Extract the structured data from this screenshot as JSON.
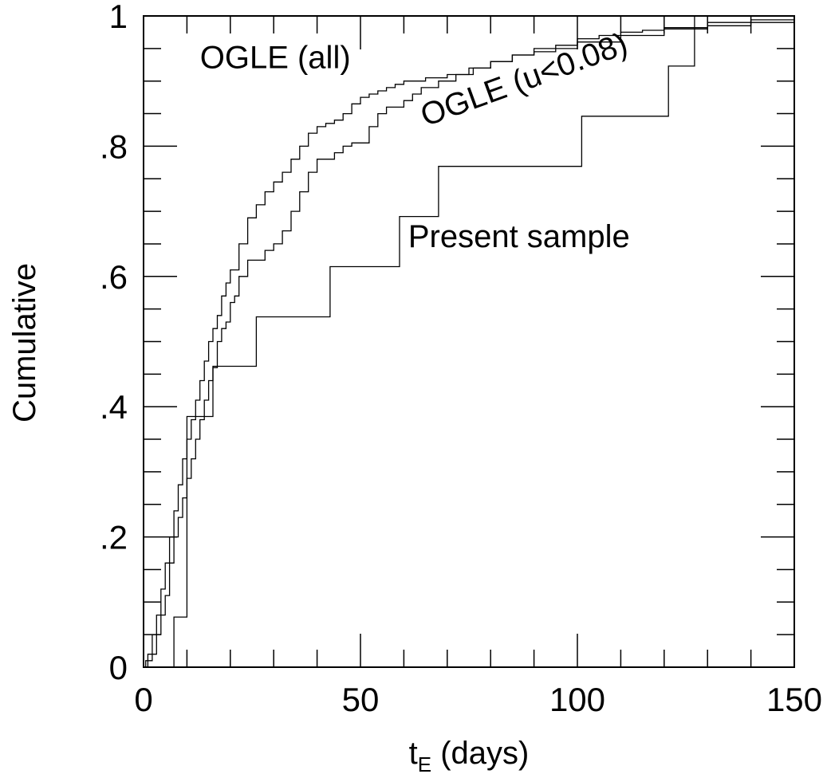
{
  "chart_data": {
    "type": "line",
    "xlabel_main": "t",
    "xlabel_sub": "E",
    "xlabel_rest": " (days)",
    "ylabel": "Cumulative",
    "xlim": [
      0,
      150
    ],
    "ylim": [
      0,
      1
    ],
    "xticks": [
      {
        "value": 0,
        "label": "0"
      },
      {
        "value": 50,
        "label": "50"
      },
      {
        "value": 100,
        "label": "100"
      },
      {
        "value": 150,
        "label": "150"
      }
    ],
    "yticks": [
      {
        "value": 0,
        "label": "0"
      },
      {
        "value": 0.2,
        "label": ".2"
      },
      {
        "value": 0.4,
        "label": ".4"
      },
      {
        "value": 0.6,
        "label": ".6"
      },
      {
        "value": 0.8,
        "label": ".8"
      },
      {
        "value": 1,
        "label": "1"
      }
    ],
    "x_minor_step": 10,
    "y_minor_step": 0.05,
    "grid": false,
    "legend": "none",
    "line_style": "step",
    "annotations": [
      {
        "text": "OGLE (all)",
        "x": 13,
        "y": 0.92,
        "angle": 0
      },
      {
        "text": "OGLE (u<0.08)",
        "x": 65,
        "y": 0.83,
        "angle": -20
      },
      {
        "text": "Present sample",
        "x": 61,
        "y": 0.645,
        "angle": 0
      }
    ],
    "series": [
      {
        "name": "OGLE (all)",
        "x": [
          0,
          0.5,
          1,
          2,
          3,
          4,
          5,
          6,
          7,
          8,
          9,
          10,
          11,
          12,
          13,
          14,
          15,
          16,
          17,
          18,
          19,
          20,
          22,
          24,
          26,
          28,
          30,
          32,
          34,
          36,
          38,
          40,
          42,
          44,
          46,
          48,
          50,
          52,
          54,
          56,
          58,
          60,
          65,
          70,
          75,
          80,
          85,
          90,
          95,
          100,
          105,
          110,
          115,
          120,
          130,
          140,
          150
        ],
        "y": [
          0,
          0.01,
          0.02,
          0.05,
          0.08,
          0.12,
          0.16,
          0.2,
          0.24,
          0.28,
          0.32,
          0.35,
          0.38,
          0.41,
          0.44,
          0.47,
          0.5,
          0.52,
          0.54,
          0.57,
          0.59,
          0.61,
          0.65,
          0.69,
          0.71,
          0.73,
          0.745,
          0.76,
          0.78,
          0.8,
          0.82,
          0.83,
          0.835,
          0.84,
          0.85,
          0.865,
          0.875,
          0.88,
          0.885,
          0.89,
          0.895,
          0.9,
          0.905,
          0.91,
          0.92,
          0.93,
          0.94,
          0.945,
          0.955,
          0.965,
          0.97,
          0.975,
          0.978,
          0.982,
          0.99,
          0.994,
          1.0
        ]
      },
      {
        "name": "OGLE (u<0.08)",
        "x": [
          0,
          1,
          2,
          3,
          4,
          5,
          6,
          7,
          8,
          9,
          10,
          11,
          12,
          13,
          14,
          15,
          16,
          17,
          18,
          19,
          20,
          21,
          22,
          24,
          26,
          28,
          30,
          32,
          34,
          36,
          38,
          40,
          42,
          44,
          46,
          48,
          50,
          52,
          54,
          56,
          58,
          60,
          62,
          64,
          68,
          72,
          76,
          80,
          85,
          90,
          100,
          110,
          120,
          130,
          140,
          150
        ],
        "y": [
          0,
          0.01,
          0.02,
          0.05,
          0.08,
          0.11,
          0.16,
          0.2,
          0.23,
          0.26,
          0.29,
          0.32,
          0.35,
          0.38,
          0.41,
          0.44,
          0.46,
          0.5,
          0.52,
          0.53,
          0.56,
          0.57,
          0.6,
          0.625,
          0.625,
          0.64,
          0.65,
          0.67,
          0.7,
          0.73,
          0.76,
          0.78,
          0.78,
          0.79,
          0.8,
          0.805,
          0.805,
          0.83,
          0.85,
          0.86,
          0.86,
          0.87,
          0.88,
          0.89,
          0.9,
          0.91,
          0.92,
          0.93,
          0.94,
          0.95,
          0.96,
          0.97,
          0.98,
          0.985,
          0.99,
          1.0
        ]
      },
      {
        "name": "Present sample",
        "x": [
          0,
          7,
          10,
          16,
          26,
          43,
          59,
          68,
          78,
          101,
          121,
          127,
          150
        ],
        "y": [
          0,
          0.077,
          0.385,
          0.462,
          0.538,
          0.615,
          0.692,
          0.769,
          0.769,
          0.846,
          0.923,
          1.0,
          1.0
        ]
      }
    ]
  }
}
